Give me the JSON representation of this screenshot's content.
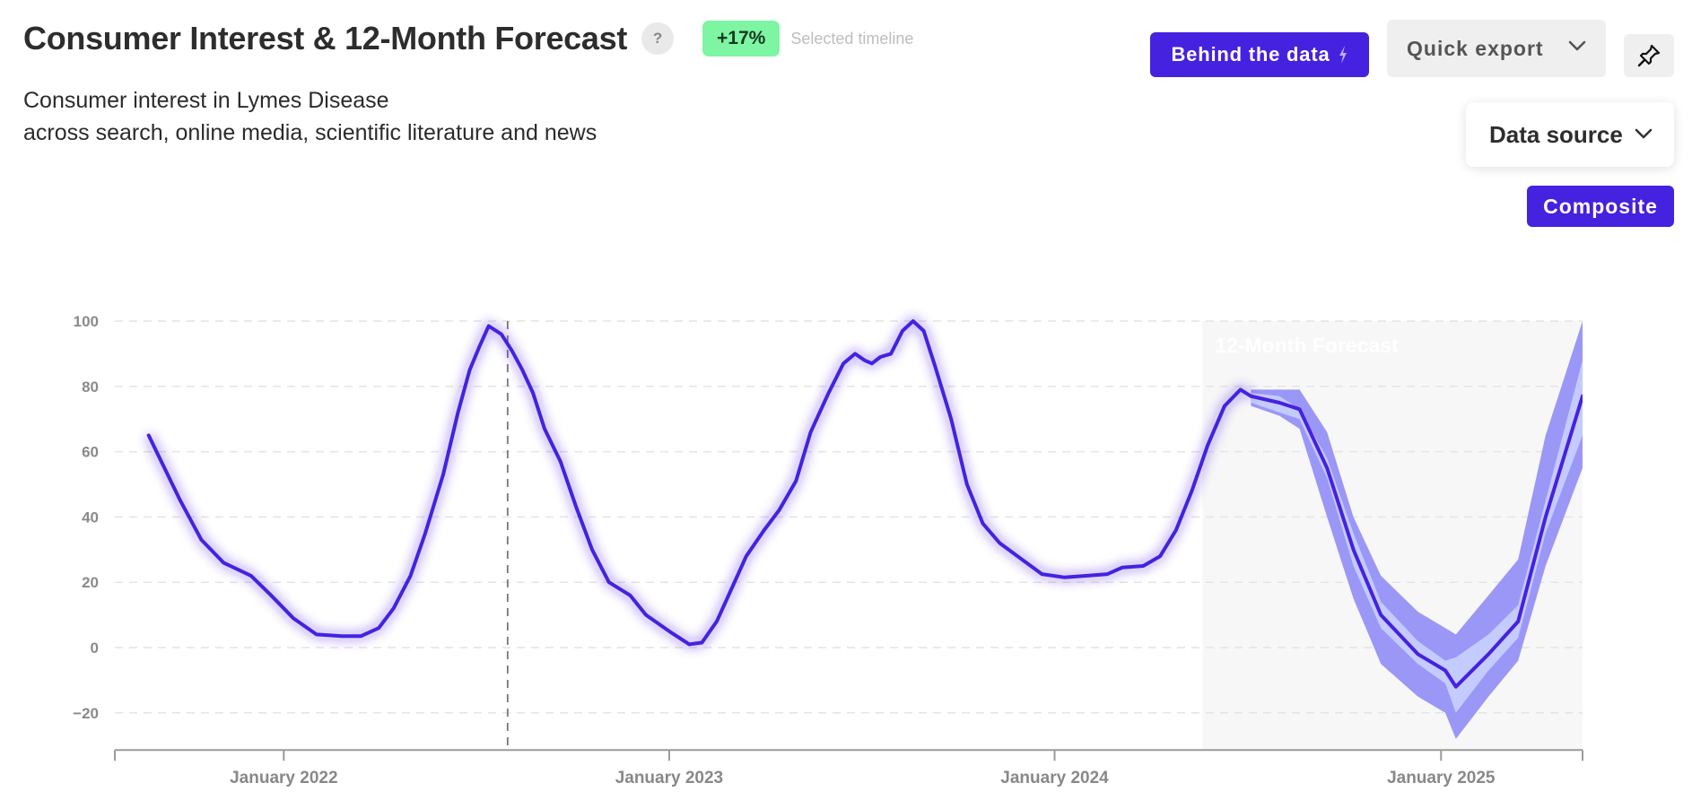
{
  "header": {
    "title": "Consumer Interest & 12-Month Forecast",
    "help_glyph": "?",
    "change_badge": "+17%",
    "badge_caption": "Selected timeline",
    "subtitle_line1": "Consumer interest in Lymes Disease",
    "subtitle_line2": "across search, online media, scientific literature and news"
  },
  "toolbar": {
    "behind_label": "Behind the data",
    "export_label": "Quick export",
    "source_label": "Data source",
    "composite_label": "Composite"
  },
  "colors": {
    "accent": "#4521e0",
    "badge": "#7ef5a3",
    "band_outer": "#9b97f7",
    "band_inner": "#c3cbff",
    "forecast_bg": "#f7f7f7"
  },
  "chart_data": {
    "type": "line",
    "title": "",
    "xlabel": "",
    "ylabel": "",
    "ylim": [
      -30,
      100
    ],
    "yticks": [
      100,
      80,
      60,
      40,
      20,
      0,
      -20
    ],
    "xlim": [
      "2021-07-25",
      "2025-05-15"
    ],
    "xticks": [
      {
        "date": "2022-01-01",
        "label": "January 2022"
      },
      {
        "date": "2023-01-01",
        "label": "January 2023"
      },
      {
        "date": "2024-01-01",
        "label": "January 2024"
      },
      {
        "date": "2025-01-01",
        "label": "January 2025"
      }
    ],
    "grid": true,
    "selected_timeline_marker": "2022-08-01",
    "forecast": {
      "label": "12-Month Forecast",
      "start": "2024-05-20",
      "end": "2025-05-15"
    },
    "history": [
      [
        "2021-08-26",
        65
      ],
      [
        "2021-09-10",
        55
      ],
      [
        "2021-09-25",
        45
      ],
      [
        "2021-10-15",
        33
      ],
      [
        "2021-11-05",
        26
      ],
      [
        "2021-12-01",
        22
      ],
      [
        "2021-12-20",
        16
      ],
      [
        "2022-01-10",
        9
      ],
      [
        "2022-02-01",
        4
      ],
      [
        "2022-02-25",
        3.5
      ],
      [
        "2022-03-15",
        3.5
      ],
      [
        "2022-04-01",
        6
      ],
      [
        "2022-04-15",
        12
      ],
      [
        "2022-05-01",
        22
      ],
      [
        "2022-05-15",
        35
      ],
      [
        "2022-06-01",
        53
      ],
      [
        "2022-06-15",
        72
      ],
      [
        "2022-06-26",
        85
      ],
      [
        "2022-07-05",
        92
      ],
      [
        "2022-07-14",
        98.5
      ],
      [
        "2022-07-26",
        96
      ],
      [
        "2022-08-05",
        91
      ],
      [
        "2022-08-15",
        85
      ],
      [
        "2022-08-25",
        78
      ],
      [
        "2022-09-05",
        67
      ],
      [
        "2022-09-20",
        57
      ],
      [
        "2022-10-05",
        43
      ],
      [
        "2022-10-20",
        30
      ],
      [
        "2022-11-05",
        20
      ],
      [
        "2022-11-25",
        16
      ],
      [
        "2022-12-10",
        10
      ],
      [
        "2023-01-01",
        5
      ],
      [
        "2023-01-20",
        1
      ],
      [
        "2023-02-01",
        1.5
      ],
      [
        "2023-02-15",
        8
      ],
      [
        "2023-03-01",
        18
      ],
      [
        "2023-03-15",
        28
      ],
      [
        "2023-04-01",
        36
      ],
      [
        "2023-04-15",
        42
      ],
      [
        "2023-05-01",
        51
      ],
      [
        "2023-05-15",
        66
      ],
      [
        "2023-06-01",
        78
      ],
      [
        "2023-06-15",
        87
      ],
      [
        "2023-06-26",
        90
      ],
      [
        "2023-07-05",
        88
      ],
      [
        "2023-07-12",
        87
      ],
      [
        "2023-07-20",
        89
      ],
      [
        "2023-07-30",
        90
      ],
      [
        "2023-08-10",
        97
      ],
      [
        "2023-08-20",
        100
      ],
      [
        "2023-08-30",
        97
      ],
      [
        "2023-09-10",
        86
      ],
      [
        "2023-09-25",
        70
      ],
      [
        "2023-10-10",
        50
      ],
      [
        "2023-10-25",
        38
      ],
      [
        "2023-11-10",
        32
      ],
      [
        "2023-12-01",
        27
      ],
      [
        "2023-12-20",
        22.5
      ],
      [
        "2024-01-10",
        21.5
      ],
      [
        "2024-02-01",
        22
      ],
      [
        "2024-02-20",
        22.5
      ],
      [
        "2024-03-05",
        24.5
      ],
      [
        "2024-03-25",
        25
      ],
      [
        "2024-04-10",
        28
      ],
      [
        "2024-04-25",
        36
      ],
      [
        "2024-05-10",
        48
      ],
      [
        "2024-05-25",
        62
      ],
      [
        "2024-06-10",
        74
      ],
      [
        "2024-06-25",
        79
      ],
      [
        "2024-07-05",
        77
      ]
    ],
    "forecast_series": [
      [
        "2024-07-05",
        77,
        74,
        75,
        78,
        79
      ],
      [
        "2024-08-01",
        75,
        71,
        72,
        77,
        79
      ],
      [
        "2024-08-20",
        73,
        67,
        70,
        73,
        79
      ],
      [
        "2024-09-15",
        55,
        40,
        52,
        58,
        66
      ],
      [
        "2024-10-10",
        30,
        15,
        25,
        35,
        40
      ],
      [
        "2024-11-05",
        10,
        -5,
        6,
        14,
        22
      ],
      [
        "2024-12-10",
        -2,
        -15,
        -5,
        2,
        11
      ],
      [
        "2025-01-05",
        -7,
        -20,
        -11,
        -4,
        6
      ],
      [
        "2025-01-15",
        -12,
        -28,
        -20,
        -3,
        4
      ],
      [
        "2025-02-15",
        -2,
        -15,
        -7,
        4,
        16
      ],
      [
        "2025-03-15",
        8,
        -4,
        3,
        13,
        27
      ],
      [
        "2025-04-10",
        40,
        25,
        35,
        45,
        65
      ],
      [
        "2025-05-15",
        77,
        55,
        65,
        88,
        100
      ]
    ],
    "forecast_series_fields": [
      "date",
      "value",
      "outer_low",
      "inner_low",
      "inner_high",
      "outer_high"
    ]
  }
}
